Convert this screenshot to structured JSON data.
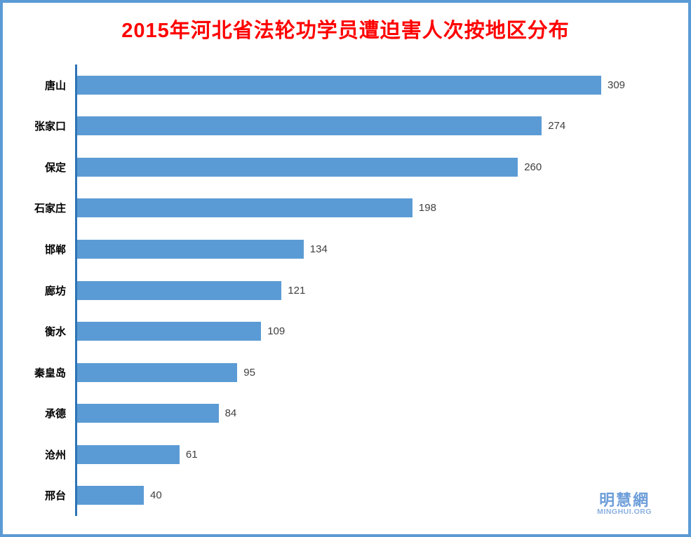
{
  "title": {
    "text": "2015年河北省法轮功学员遭迫害人次按地区分布",
    "color": "#FF0000"
  },
  "chart_data": {
    "type": "bar",
    "orientation": "horizontal",
    "title": "2015年河北省法轮功学员遭迫害人次按地区分布",
    "categories": [
      "唐山",
      "张家口",
      "保定",
      "石家庄",
      "邯郸",
      "廊坊",
      "衡水",
      "秦皇岛",
      "承德",
      "沧州",
      "邢台"
    ],
    "values": [
      309,
      274,
      260,
      198,
      134,
      121,
      109,
      95,
      84,
      61,
      40
    ],
    "xlabel": "",
    "ylabel": "",
    "grid": false,
    "legend": false,
    "data_labels": true,
    "bar_color": "#5B9BD5",
    "axis_line_color": "#2E74B5",
    "value_label_color": "#404040",
    "category_label_color": "#000000",
    "frame_border_color": "#5B9BD5"
  },
  "watermark": {
    "cn": "明慧網",
    "en": "MINGHUI.ORG",
    "cn_color": "#6D9ED9",
    "en_color": "#8AB0DF"
  }
}
